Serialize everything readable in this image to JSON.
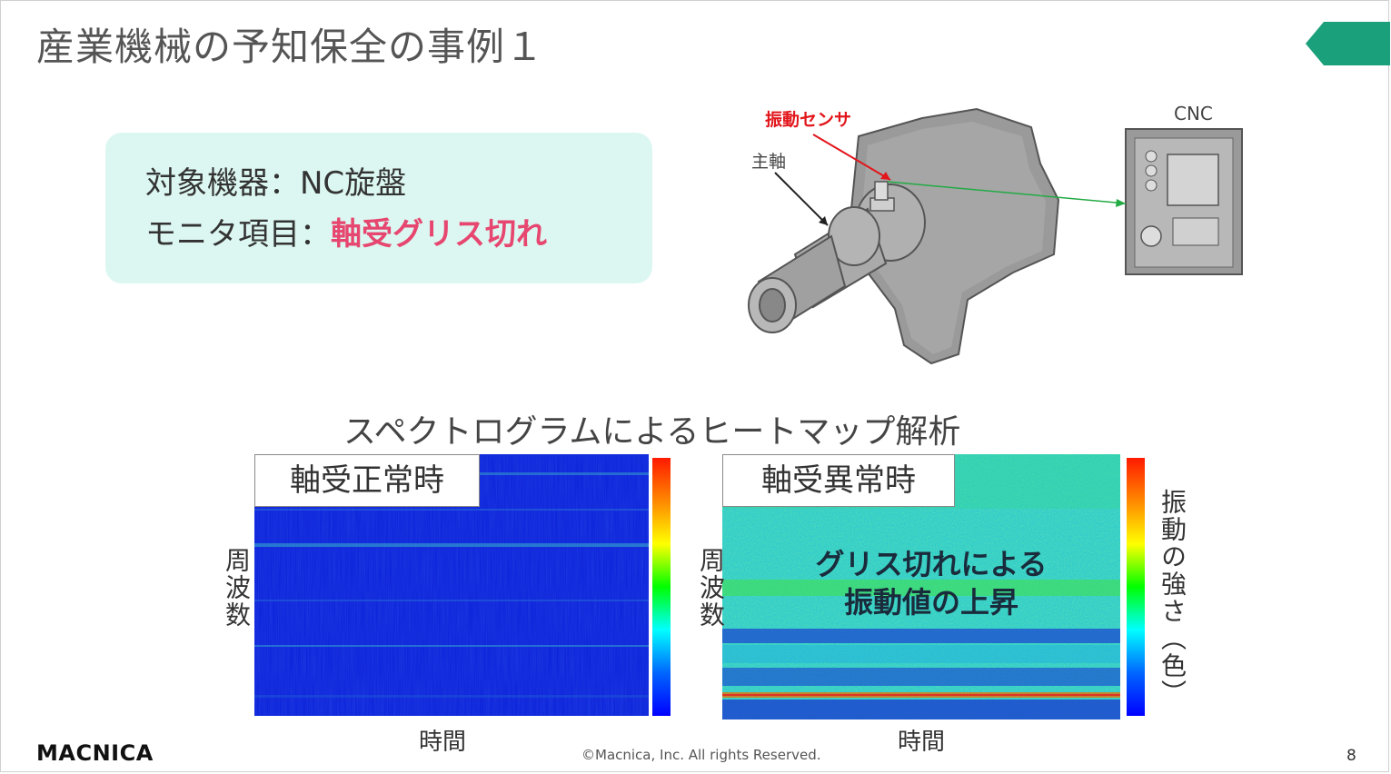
{
  "slide": {
    "title": "産業機械の予知保全の事例１",
    "page_number": "8",
    "copyright": "©Macnica, Inc. All rights Reserved.",
    "logo_text": "MACNICA"
  },
  "info": {
    "line1": "対象機器：NC旋盤",
    "line2_prefix": "モニタ項目：",
    "line2_highlight": "軸受グリス切れ"
  },
  "diagram": {
    "sensor_label": "振動センサ",
    "spindle_label": "主軸",
    "cnc_label": "CNC"
  },
  "analysis": {
    "heading": "スペクトログラムによるヒートマップ解析",
    "normal": {
      "label": "軸受正常時",
      "ylabel": "周波数",
      "xlabel": "時間"
    },
    "abnormal": {
      "label": "軸受異常時",
      "ylabel": "周波数",
      "xlabel": "時間",
      "overlay_line1": "グリス切れによる",
      "overlay_line2": "振動値の上昇"
    },
    "colorbar_label": "振動の強さ（色）"
  },
  "colors": {
    "accent_green": "#1aa07a",
    "info_bg": "#dcf7f1",
    "highlight_pink": "#e6466f",
    "sensor_red": "#e2161b"
  }
}
